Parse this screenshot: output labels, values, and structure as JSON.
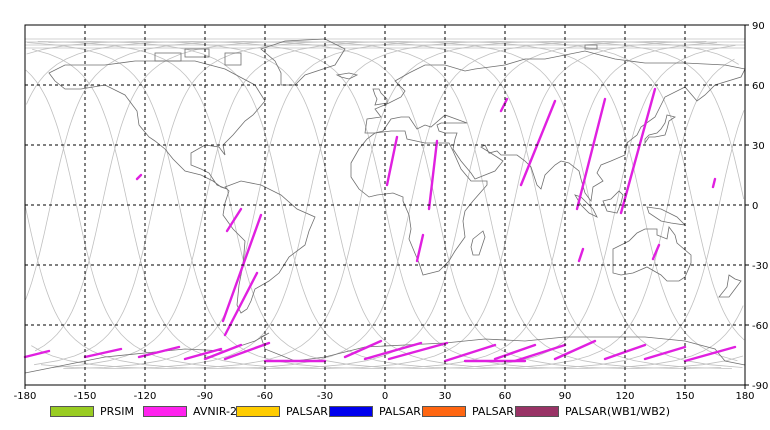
{
  "chart_data": {
    "type": "map",
    "xlim": [
      -180,
      180
    ],
    "ylim": [
      -90,
      90
    ],
    "x_ticks": [
      -180,
      -150,
      -120,
      -90,
      -60,
      -30,
      0,
      30,
      60,
      90,
      120,
      150,
      180
    ],
    "y_ticks": [
      90,
      60,
      30,
      0,
      -30,
      -60,
      -90
    ],
    "grid": true,
    "legend_placement": "bottom",
    "legend": [
      {
        "label": "PRSIM",
        "color": "#99cc22"
      },
      {
        "label": "AVNIR-2",
        "color": "#ff22ee"
      },
      {
        "label": "PALSAR(FBS)",
        "color": "#ffcc00"
      },
      {
        "label": "PALSAR(FBD)",
        "color": "#0000ee"
      },
      {
        "label": "PALSAR(PLR)",
        "color": "#ff6611"
      },
      {
        "label": "PALSAR(WB1/WB2)",
        "color": "#993366"
      }
    ],
    "colors": {
      "orbit": "#c0c0c0",
      "coast": "#707070",
      "grid": "#000000",
      "avnir2": "#e020e0"
    }
  }
}
